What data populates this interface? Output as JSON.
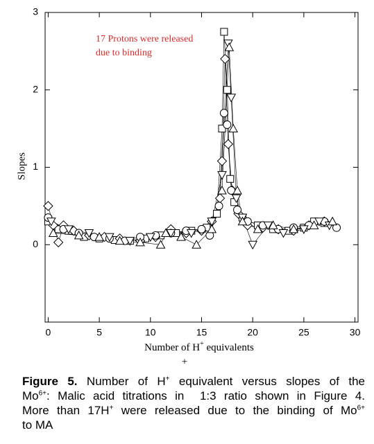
{
  "chart_data": {
    "type": "scatter",
    "ylabel": "Slopes",
    "xlabel": {
      "text": "Number of H",
      "sup": "+",
      "rest": " equivalents"
    },
    "xlabel_extra": "+",
    "annotation": [
      "17 Protons were released",
      "due to binding"
    ],
    "annotation_color": "#d92a2a",
    "xlim": [
      -0.3,
      30.3
    ],
    "xticks": [
      0,
      5,
      10,
      15,
      20,
      25,
      30
    ],
    "ylim": [
      -1,
      3
    ],
    "yticks": [
      0,
      1,
      2,
      3
    ],
    "series": [
      {
        "marker": "square",
        "color": "#000000",
        "x": [
          0,
          1,
          2,
          3.5,
          5,
          6.5,
          8,
          9.5,
          11,
          12.5,
          14,
          15.5,
          16.5,
          17,
          17.2,
          17.5,
          17.8,
          18.2,
          19,
          20.5,
          22,
          23.5,
          25,
          26,
          27
        ],
        "values": [
          0.3,
          0.2,
          0.18,
          0.1,
          0.08,
          0.06,
          0.05,
          0.08,
          0.12,
          0.15,
          0.18,
          0.22,
          0.4,
          1.5,
          2.75,
          2.0,
          0.85,
          0.55,
          0.35,
          0.25,
          0.2,
          0.18,
          0.22,
          0.3,
          0.28
        ]
      },
      {
        "marker": "diamond",
        "color": "#000000",
        "x": [
          0,
          0.5,
          1,
          1.5,
          2.5,
          4,
          5.5,
          7,
          9,
          10.5,
          12,
          13.5,
          15,
          16,
          16.8,
          17,
          17.3,
          17.6,
          18,
          18.6,
          19.5,
          21,
          22.5,
          24,
          25.5,
          27
        ],
        "values": [
          0.5,
          0.25,
          0.03,
          0.25,
          0.18,
          0.12,
          0.1,
          0.08,
          0.05,
          0.1,
          0.2,
          0.15,
          0.18,
          0.3,
          0.6,
          1.08,
          2.4,
          1.3,
          0.7,
          0.4,
          0.25,
          0.22,
          0.2,
          0.18,
          0.25,
          0.3
        ]
      },
      {
        "marker": "circle",
        "color": "#000000",
        "x": [
          0,
          1.5,
          3,
          4.5,
          6,
          7.5,
          9,
          10.5,
          12,
          13.5,
          15,
          15.8,
          16.7,
          17.2,
          17.5,
          17.9,
          18.5,
          19.5,
          21,
          22.5,
          24,
          25.5,
          27,
          28.2
        ],
        "values": [
          0.35,
          0.2,
          0.15,
          0.1,
          0.08,
          0.05,
          0.1,
          0.12,
          0.15,
          0.18,
          0.2,
          0.12,
          0.5,
          1.7,
          1.55,
          0.7,
          0.45,
          0.3,
          0.25,
          0.2,
          0.22,
          0.25,
          0.3,
          0.22
        ]
      },
      {
        "marker": "triangle-down",
        "color": "#000000",
        "x": [
          0.3,
          2,
          4,
          6,
          8,
          10,
          12,
          14,
          16,
          17,
          17.6,
          17.9,
          18.4,
          19,
          20,
          21.5,
          23,
          25,
          26.5,
          27.5
        ],
        "values": [
          0.3,
          0.2,
          0.15,
          0.1,
          0.05,
          0.1,
          0.15,
          0.15,
          0.3,
          0.9,
          2.6,
          1.9,
          0.6,
          0.35,
          0.0,
          0.25,
          0.15,
          0.2,
          0.3,
          0.25
        ]
      },
      {
        "marker": "triangle-up",
        "color": "#000000",
        "x": [
          0.5,
          3,
          5,
          7,
          9,
          11,
          11.5,
          13,
          14.5,
          16,
          17,
          17.7,
          18.1,
          18.5,
          19,
          20.5,
          22,
          24,
          26,
          27.8
        ],
        "values": [
          0.15,
          0.12,
          0.1,
          0.05,
          0.03,
          0.0,
          0.15,
          0.1,
          0.0,
          0.2,
          0.7,
          2.55,
          1.5,
          0.7,
          0.3,
          0.2,
          0.25,
          0.2,
          0.25,
          0.3
        ]
      }
    ]
  },
  "caption": [
    [
      {
        "text": "Figure 5.",
        "bold": true
      },
      {
        "text": " Number of H"
      },
      {
        "text": "+",
        "sup": true
      },
      {
        "text": " equivalent versus slopes of the"
      }
    ],
    [
      {
        "text": "Mo"
      },
      {
        "text": "6+",
        "sup": true
      },
      {
        "text": ": Malic acid titrations in  1:3 ratio shown in Figure 4."
      }
    ],
    [
      {
        "text": "More than 17H"
      },
      {
        "text": "+",
        "sup": true
      },
      {
        "text": " were released due to the binding of Mo"
      },
      {
        "text": "6+",
        "sup": true
      }
    ],
    [
      {
        "text": "to MA"
      }
    ]
  ]
}
